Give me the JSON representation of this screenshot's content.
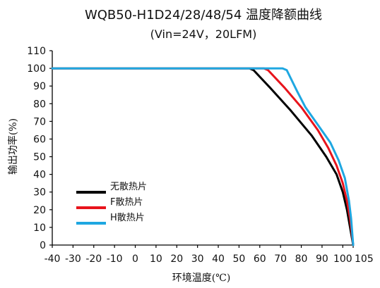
{
  "chart_data": {
    "type": "line",
    "title": "WQB50-H1D24/28/48/54 温度降额曲线",
    "subtitle": "(Vin=24V，20LFM)",
    "xlabel": "环境温度(℃)",
    "ylabel": "输出功率(%)",
    "xlim": [
      -40,
      105
    ],
    "ylim": [
      0,
      110
    ],
    "xticks": [
      -40,
      -30,
      -20,
      -10,
      0,
      10,
      20,
      30,
      40,
      50,
      60,
      70,
      80,
      90,
      100,
      105
    ],
    "yticks": [
      0,
      10,
      20,
      30,
      40,
      50,
      60,
      70,
      80,
      90,
      100,
      110
    ],
    "grid": false,
    "legend_position": "bottom-left",
    "series": [
      {
        "name": "无散热片",
        "color": "#000000",
        "points": [
          [
            -40,
            100
          ],
          [
            55,
            100
          ],
          [
            57,
            99
          ],
          [
            65,
            89
          ],
          [
            75,
            76
          ],
          [
            85,
            62
          ],
          [
            92,
            50
          ],
          [
            97,
            40
          ],
          [
            100,
            30
          ],
          [
            102,
            20
          ],
          [
            103.5,
            10
          ],
          [
            105,
            0
          ]
        ]
      },
      {
        "name": "F散热片",
        "color": "#e8141c",
        "points": [
          [
            -40,
            100
          ],
          [
            62,
            100
          ],
          [
            64,
            99
          ],
          [
            72,
            89
          ],
          [
            80,
            78
          ],
          [
            88,
            65
          ],
          [
            93,
            55
          ],
          [
            97,
            45
          ],
          [
            100,
            35
          ],
          [
            102,
            25
          ],
          [
            103.5,
            15
          ],
          [
            105,
            0
          ]
        ]
      },
      {
        "name": "H散热片",
        "color": "#1ea7e1",
        "points": [
          [
            -40,
            100
          ],
          [
            71,
            100
          ],
          [
            73,
            99
          ],
          [
            78,
            87
          ],
          [
            82,
            78
          ],
          [
            88,
            68
          ],
          [
            94,
            58
          ],
          [
            98,
            48
          ],
          [
            101,
            38
          ],
          [
            103,
            25
          ],
          [
            104,
            15
          ],
          [
            105,
            0
          ]
        ]
      }
    ]
  }
}
